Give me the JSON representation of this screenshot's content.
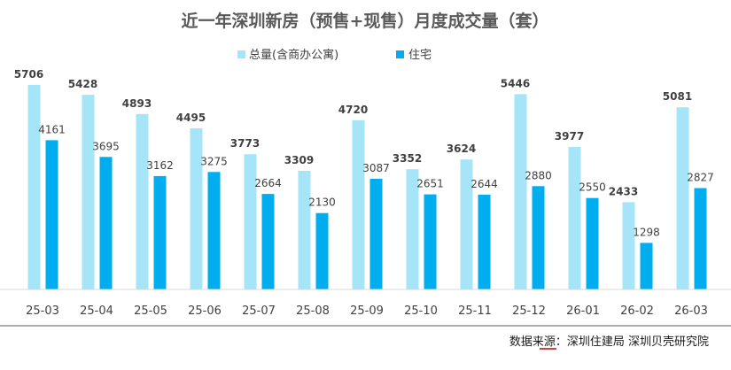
{
  "chart_data": {
    "type": "bar",
    "title": "近一年深圳新房（预售+现售）月度成交量（套）",
    "categories": [
      "25-03",
      "25-04",
      "25-05",
      "25-06",
      "25-07",
      "25-08",
      "25-09",
      "25-10",
      "25-11",
      "25-12",
      "26-01",
      "26-02",
      "26-03"
    ],
    "series": [
      {
        "name": "总量(含商办公寓)",
        "color": "#A6E4F7",
        "values": [
          5706,
          5428,
          4893,
          4495,
          3773,
          3309,
          4720,
          3352,
          3624,
          5446,
          3977,
          2433,
          5081
        ]
      },
      {
        "name": "住宅",
        "color": "#00ADEF",
        "values": [
          4161,
          3695,
          3162,
          3275,
          2664,
          2130,
          3087,
          2651,
          2644,
          2880,
          2550,
          1298,
          2827
        ]
      }
    ],
    "ylim": [
      0,
      5900
    ],
    "legend_position": "top-center",
    "grid": false,
    "source_prefix": "数据来源：",
    "source_orgs": "深圳住建局   深圳贝壳研究院"
  }
}
